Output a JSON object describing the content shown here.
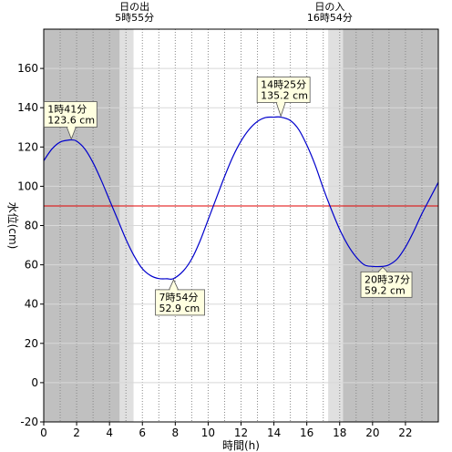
{
  "chart_data": {
    "type": "line",
    "title": "",
    "xlabel": "時間(h)",
    "ylabel": "水位(cm)",
    "xlim": [
      0,
      24
    ],
    "ylim": [
      -20,
      180
    ],
    "xticks": [
      0,
      2,
      4,
      6,
      8,
      10,
      12,
      14,
      16,
      18,
      20,
      22
    ],
    "yticks": [
      -20,
      0,
      20,
      40,
      60,
      80,
      100,
      120,
      140,
      160
    ],
    "grid": true,
    "reference_line": {
      "y": 90,
      "color": "#e00000"
    },
    "series": [
      {
        "color": "#0000cc",
        "x": [
          0,
          0.5,
          1,
          1.5,
          1.68,
          2,
          2.5,
          3,
          3.5,
          4,
          4.5,
          5,
          5.5,
          6,
          6.5,
          7,
          7.5,
          7.9,
          8.5,
          9,
          9.5,
          10,
          10.5,
          11,
          11.5,
          12,
          12.5,
          13,
          13.5,
          14,
          14.42,
          15,
          15.5,
          16,
          16.5,
          17,
          17.5,
          18,
          18.5,
          19,
          19.5,
          20,
          20.62,
          21,
          21.5,
          22,
          22.5,
          23,
          23.5,
          24
        ],
        "y": [
          113,
          119,
          122.5,
          123.5,
          123.6,
          123,
          119,
          112,
          103,
          93,
          83,
          73,
          64.5,
          58,
          54.5,
          53,
          52.9,
          53,
          57,
          63,
          72,
          83,
          94,
          105,
          115,
          123,
          129,
          133,
          135,
          135.2,
          135.2,
          133.5,
          129,
          121,
          111,
          99,
          88,
          78,
          70,
          64,
          60,
          59.2,
          59.2,
          60,
          63,
          69,
          77,
          86,
          94,
          102
        ]
      }
    ],
    "annotations": [
      {
        "x": 1.68,
        "y": 123.6,
        "time": "1時41分",
        "value": "123.6 cm"
      },
      {
        "x": 7.9,
        "y": 52.9,
        "time": "7時54分",
        "value": "52.9 cm"
      },
      {
        "x": 14.42,
        "y": 135.2,
        "time": "14時25分",
        "value": "135.2 cm"
      },
      {
        "x": 20.62,
        "y": 59.2,
        "time": "20時37分",
        "value": "59.2 cm"
      }
    ],
    "sunrise": {
      "label": "日の出",
      "time": "5時55分",
      "x": 5.92
    },
    "sunset": {
      "label": "日の入",
      "time": "16時54分",
      "x": 16.9
    },
    "night_color": "#c0c0c0",
    "twilight_color": "#e0e0e0",
    "day_color": "#ffffff"
  }
}
